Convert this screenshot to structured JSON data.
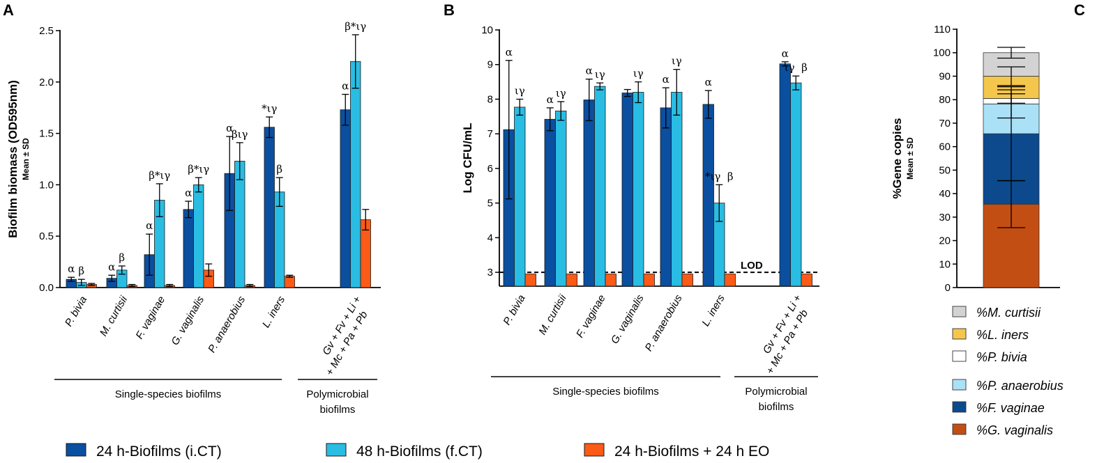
{
  "colors": {
    "ict": "#0a4fa0",
    "fct": "#29bde3",
    "eo": "#fb5a17",
    "m_curtisii": "#d3d3d3",
    "l_iners": "#f4c64c",
    "p_bivia": "#ffffff",
    "p_anaerobius": "#aae1f7",
    "f_vaginae": "#0c4a8d",
    "g_vaginalis": "#c34e14"
  },
  "legend": {
    "ict": "24 h-Biofilms (i.CT)",
    "fct": "48 h-Biofilms (f.CT)",
    "eo": "24 h-Biofilms + 24 h EO"
  },
  "chart_data": [
    {
      "panel": "A",
      "type": "bar",
      "title": "",
      "ylabel": "Biofilm biomass (OD595nm)",
      "ylabel_sub": "Mean ± SD",
      "ylim": [
        0,
        2.5
      ],
      "yticks": [
        "0.0",
        "0.5",
        "1.0",
        "1.5",
        "2.0",
        "2.5"
      ],
      "categories": [
        "P. bivia",
        "M. curtisii",
        "F. vaginae",
        "G. vaginalis",
        "P. anaerobius",
        "L. iners",
        "Gv + Fv + Li + + Mc + Pa + Pb"
      ],
      "category_lines": [
        [
          "P. bivia"
        ],
        [
          "M. curtisii"
        ],
        [
          "F. vaginae"
        ],
        [
          "G. vaginalis"
        ],
        [
          "P. anaerobius"
        ],
        [
          "L. iners"
        ],
        [
          "Gv + Fv + Li +",
          "+ Mc + Pa + Pb"
        ]
      ],
      "groups": [
        {
          "label": [
            "Single-species biofilms"
          ],
          "from": 0,
          "to": 5
        },
        {
          "label": [
            "Polymicrobial",
            "biofilms"
          ],
          "from": 6,
          "to": 6
        }
      ],
      "series": [
        {
          "name": "24 h-Biofilms (i.CT)",
          "values": [
            0.08,
            0.09,
            0.32,
            0.76,
            1.11,
            1.56,
            1.73
          ],
          "errors": [
            0.02,
            0.03,
            0.2,
            0.08,
            0.36,
            0.1,
            0.15
          ],
          "labels": [
            "α",
            "α",
            "α",
            "α",
            "α",
            "*ιγ",
            "α"
          ]
        },
        {
          "name": "48 h-Biofilms (f.CT)",
          "values": [
            0.05,
            0.17,
            0.85,
            1.0,
            1.23,
            0.93,
            2.2
          ],
          "errors": [
            0.03,
            0.04,
            0.16,
            0.07,
            0.18,
            0.14,
            0.26
          ],
          "labels": [
            "β",
            "β",
            "β*ιγ",
            "β*ιγ",
            "βιγ",
            "β",
            "β*ιγ"
          ]
        },
        {
          "name": "24 h-Biofilms + 24 h EO",
          "values": [
            0.03,
            0.02,
            0.02,
            0.17,
            0.02,
            0.11,
            0.66
          ],
          "errors": [
            0.01,
            0.01,
            0.01,
            0.06,
            0.01,
            0.01,
            0.1
          ],
          "labels": [
            "",
            "",
            "",
            "",
            "",
            "",
            ""
          ]
        }
      ]
    },
    {
      "panel": "B",
      "type": "bar",
      "title": "",
      "ylabel": "Log CFU/mL",
      "ylim": [
        2.6,
        10
      ],
      "yticks": [
        "3",
        "4",
        "5",
        "6",
        "7",
        "8",
        "9",
        "10"
      ],
      "categories": [
        "P. bivia",
        "M. curtisii",
        "F. vaginae",
        "G. vaginalis",
        "P. anaerobius",
        "L. iners",
        "Gv + Fv + Li + + Mc + Pa + Pb"
      ],
      "category_lines": [
        [
          "P. bivia"
        ],
        [
          "M. curtisii"
        ],
        [
          "F. vaginae"
        ],
        [
          "G. vaginalis"
        ],
        [
          "P. anaerobius"
        ],
        [
          "L. iners"
        ],
        [
          "Gv + Fv + Li +",
          "+ Mc + Pa + Pb"
        ]
      ],
      "groups": [
        {
          "label": [
            "Single-species biofilms"
          ],
          "from": 0,
          "to": 5
        },
        {
          "label": [
            "Polymicrobial",
            "biofilms"
          ],
          "from": 6,
          "to": 6
        }
      ],
      "reference_line": {
        "value": 3,
        "label": "LOD"
      },
      "series": [
        {
          "name": "24 h-Biofilms (i.CT)",
          "values": [
            7.12,
            7.42,
            7.98,
            8.18,
            7.75,
            7.85,
            9.02
          ],
          "errors": [
            2.0,
            0.33,
            0.6,
            0.1,
            0.58,
            0.4,
            0.06
          ],
          "labels": [
            "α",
            "α",
            "α",
            "",
            "α",
            "α",
            "α"
          ]
        },
        {
          "name": "48 h-Biofilms (f.CT)",
          "values": [
            7.77,
            7.66,
            8.37,
            8.2,
            8.2,
            5.0,
            8.47
          ],
          "errors": [
            0.23,
            0.27,
            0.1,
            0.3,
            0.66,
            0.53,
            0.2
          ],
          "labels": [
            "ιγ",
            "ιγ",
            "ιγ",
            "ιγ",
            "ιγ",
            "*ιγ  β",
            "ιγ  β"
          ]
        },
        {
          "name": "24 h-Biofilms + 24 h EO",
          "values": [
            2.95,
            2.95,
            2.95,
            2.95,
            2.95,
            2.95,
            2.95
          ],
          "errors": [
            0,
            0,
            0,
            0,
            0,
            0,
            0
          ],
          "labels": [
            "",
            "",
            "",
            "",
            "",
            "",
            ""
          ]
        }
      ]
    },
    {
      "panel": "C",
      "type": "bar",
      "stacked": true,
      "title": "",
      "ylabel": "%Gene copies",
      "ylabel_sub": "Mean ± SD",
      "ylim": [
        0,
        110
      ],
      "yticks": [
        "0",
        "10",
        "20",
        "30",
        "40",
        "50",
        "60",
        "70",
        "80",
        "90",
        "100",
        "110"
      ],
      "legend": [
        "%M. curtisii",
        "%L. iners",
        "%P. bivia",
        "%P. anaerobius",
        "%F. vaginae",
        "%G. vaginalis"
      ],
      "segments": [
        {
          "name": "%G. vaginalis",
          "value": 35.5,
          "error": 10,
          "color": "#c34e14"
        },
        {
          "name": "%F. vaginae",
          "value": 30.0,
          "error": 20,
          "color": "#0c4a8d"
        },
        {
          "name": "%P. anaerobius",
          "value": 12.7,
          "error": 6,
          "color": "#aae1f7"
        },
        {
          "name": "%P. bivia",
          "value": 2.3,
          "error": 2,
          "color": "#ffffff"
        },
        {
          "name": "%L. iners",
          "value": 9.5,
          "error": 4,
          "color": "#f4c64c"
        },
        {
          "name": "%M. curtisii",
          "value": 10.0,
          "error": 2.3,
          "color": "#d3d3d3"
        }
      ]
    }
  ]
}
